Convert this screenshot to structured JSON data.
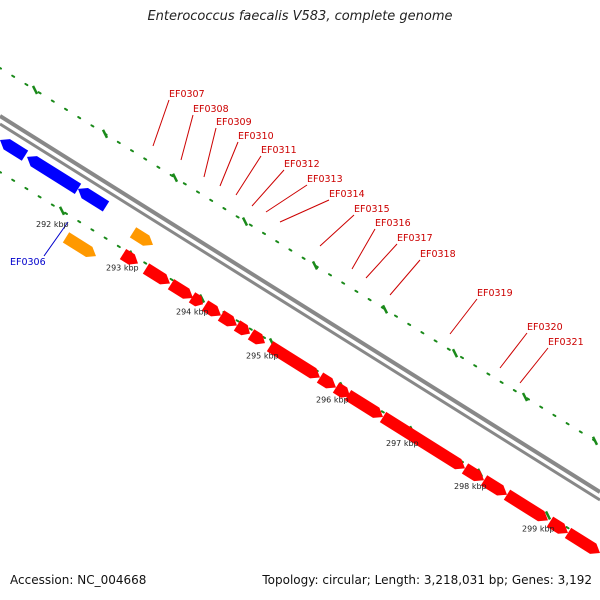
{
  "title": "Enterococcus faecalis V583, complete genome",
  "footer": {
    "accession": "Accession: NC_004668",
    "summary": "Topology: circular; Length: 3,218,031 bp; Genes: 3,192"
  },
  "colors": {
    "background": "#ffffff",
    "backbone": "#888888",
    "tick": "#1a8a1a",
    "forward_gene": "#ff0000",
    "reverse_gene": "#0000ff",
    "other_feature": "#ff9900",
    "label_red": "#cc0000",
    "label_blue": "#0000cc"
  },
  "ruler": [
    {
      "label": "292 kbp",
      "kbp": 292
    },
    {
      "label": "293 kbp",
      "kbp": 293
    },
    {
      "label": "294 kbp",
      "kbp": 294
    },
    {
      "label": "295 kbp",
      "kbp": 295
    },
    {
      "label": "296 kbp",
      "kbp": 296
    },
    {
      "label": "297 kbp",
      "kbp": 297
    },
    {
      "label": "298 kbp",
      "kbp": 298
    },
    {
      "label": "299 kbp",
      "kbp": 299
    }
  ],
  "genes_forward": [
    "EF0307",
    "EF0308",
    "EF0309",
    "EF0310",
    "EF0311",
    "EF0312",
    "EF0313",
    "EF0314",
    "EF0315",
    "EF0316",
    "EF0317",
    "EF0318",
    "EF0319",
    "EF0320",
    "EF0321"
  ],
  "genes_reverse": [
    "EF0306"
  ]
}
